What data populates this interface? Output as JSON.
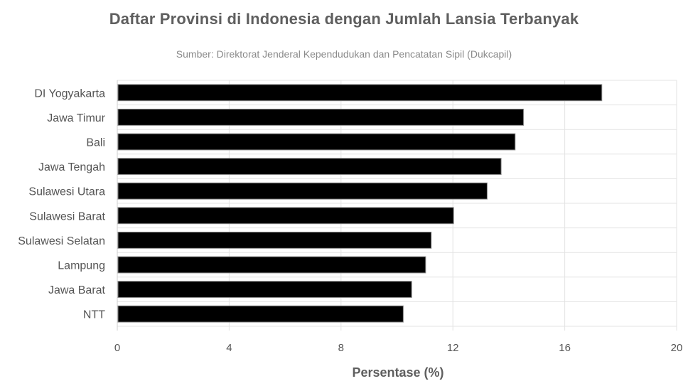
{
  "chart_data": {
    "type": "bar",
    "orientation": "horizontal",
    "title": "Daftar Provinsi di Indonesia dengan Jumlah Lansia Terbanyak",
    "subtitle": "Sumber: Direktorat Jenderal Kependudukan dan Pencatatan Sipil (Dukcapil)",
    "xlabel": "Persentase (%)",
    "ylabel": "",
    "categories": [
      "DI Yogyakarta",
      "Jawa Timur",
      "Bali",
      "Jawa Tengah",
      "Sulawesi Utara",
      "Sulawesi Barat",
      "Sulawesi Selatan",
      "Lampung",
      "Jawa Barat",
      "NTT"
    ],
    "values": [
      17.3,
      14.5,
      14.2,
      13.7,
      13.2,
      12.0,
      11.2,
      11.0,
      10.5,
      10.2
    ],
    "xlim": [
      0,
      20
    ],
    "xticks": [
      0,
      4,
      8,
      12,
      16,
      20
    ],
    "grid": true,
    "bar_color": "#000000"
  }
}
